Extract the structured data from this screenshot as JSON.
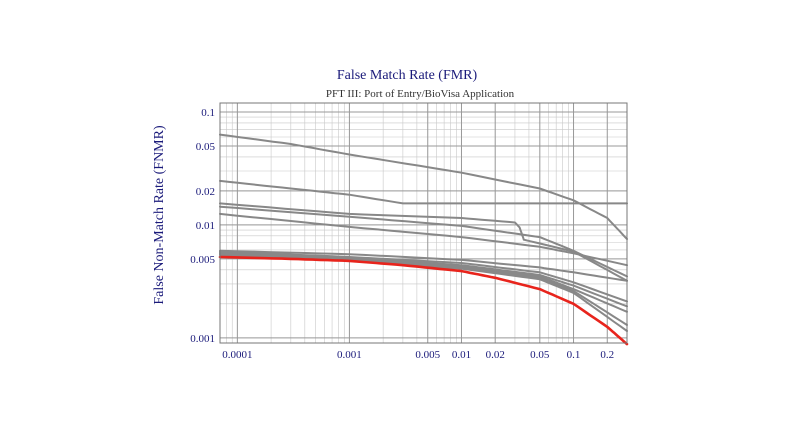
{
  "chart_data": {
    "type": "line",
    "title": "False Match Rate (FMR)",
    "subtitle": "PFT III: Port of Entry/BioVisa Application",
    "xlabel": "",
    "ylabel": "False Non-Match Rate (FNMR)",
    "x_scale": "log",
    "y_scale": "log",
    "xlim": [
      7e-05,
      0.3
    ],
    "ylim": [
      0.0009,
      0.12
    ],
    "grid": true,
    "x_ticks": [
      {
        "value": 0.0001,
        "label": "0.0001"
      },
      {
        "value": 0.001,
        "label": "0.001"
      },
      {
        "value": 0.005,
        "label": "0.005"
      },
      {
        "value": 0.01,
        "label": "0.01"
      },
      {
        "value": 0.02,
        "label": "0.02"
      },
      {
        "value": 0.05,
        "label": "0.05"
      },
      {
        "value": 0.1,
        "label": "0.1"
      },
      {
        "value": 0.2,
        "label": "0.2"
      }
    ],
    "y_ticks": [
      {
        "value": 0.1,
        "label": "0.1"
      },
      {
        "value": 0.05,
        "label": "0.05"
      },
      {
        "value": 0.02,
        "label": "0.02"
      },
      {
        "value": 0.01,
        "label": "0.01"
      },
      {
        "value": 0.005,
        "label": "0.005"
      },
      {
        "value": 0.001,
        "label": "0.001"
      }
    ],
    "series": [
      {
        "color": "#888888",
        "points": [
          [
            7e-05,
            0.063
          ],
          [
            0.0003,
            0.052
          ],
          [
            0.001,
            0.042
          ],
          [
            0.01,
            0.029
          ],
          [
            0.05,
            0.021
          ],
          [
            0.1,
            0.0165
          ],
          [
            0.2,
            0.0115
          ],
          [
            0.3,
            0.0075
          ]
        ]
      },
      {
        "color": "#888888",
        "points": [
          [
            7e-05,
            0.0245
          ],
          [
            0.0003,
            0.021
          ],
          [
            0.001,
            0.0185
          ],
          [
            0.003,
            0.0155
          ],
          [
            0.3,
            0.0155
          ]
        ]
      },
      {
        "color": "#888888",
        "points": [
          [
            7e-05,
            0.0155
          ],
          [
            0.001,
            0.0125
          ],
          [
            0.01,
            0.0115
          ],
          [
            0.03,
            0.0105
          ],
          [
            0.033,
            0.0095
          ],
          [
            0.036,
            0.0074
          ],
          [
            0.1,
            0.0058
          ],
          [
            0.3,
            0.0032
          ]
        ]
      },
      {
        "color": "#888888",
        "points": [
          [
            7e-05,
            0.0145
          ],
          [
            0.001,
            0.0118
          ],
          [
            0.01,
            0.0098
          ],
          [
            0.05,
            0.0078
          ],
          [
            0.1,
            0.0059
          ],
          [
            0.3,
            0.0035
          ]
        ]
      },
      {
        "color": "#888888",
        "points": [
          [
            7e-05,
            0.0125
          ],
          [
            0.001,
            0.0096
          ],
          [
            0.01,
            0.0078
          ],
          [
            0.05,
            0.0064
          ],
          [
            0.1,
            0.0056
          ],
          [
            0.3,
            0.0044
          ]
        ]
      },
      {
        "color": "#888888",
        "points": [
          [
            7e-05,
            0.0059
          ],
          [
            0.001,
            0.0055
          ],
          [
            0.01,
            0.0049
          ],
          [
            0.05,
            0.0042
          ],
          [
            0.1,
            0.0038
          ],
          [
            0.3,
            0.0032
          ]
        ]
      },
      {
        "color": "#888888",
        "points": [
          [
            7e-05,
            0.0058
          ],
          [
            0.001,
            0.0052
          ],
          [
            0.01,
            0.0046
          ],
          [
            0.05,
            0.0038
          ],
          [
            0.1,
            0.0031
          ],
          [
            0.3,
            0.0021
          ]
        ]
      },
      {
        "color": "#888888",
        "points": [
          [
            7e-05,
            0.0057
          ],
          [
            0.001,
            0.0051
          ],
          [
            0.01,
            0.0044
          ],
          [
            0.05,
            0.0036
          ],
          [
            0.1,
            0.0029
          ],
          [
            0.3,
            0.0019
          ]
        ]
      },
      {
        "color": "#888888",
        "points": [
          [
            7e-05,
            0.0056
          ],
          [
            0.001,
            0.005
          ],
          [
            0.01,
            0.0043
          ],
          [
            0.05,
            0.0035
          ],
          [
            0.1,
            0.0027
          ],
          [
            0.3,
            0.0017
          ]
        ]
      },
      {
        "color": "#888888",
        "points": [
          [
            7e-05,
            0.0055
          ],
          [
            0.001,
            0.0049
          ],
          [
            0.01,
            0.0042
          ],
          [
            0.05,
            0.0034
          ],
          [
            0.1,
            0.0026
          ],
          [
            0.3,
            0.0013
          ]
        ]
      },
      {
        "color": "#888888",
        "points": [
          [
            7e-05,
            0.0054
          ],
          [
            0.001,
            0.0048
          ],
          [
            0.01,
            0.0041
          ],
          [
            0.05,
            0.0033
          ],
          [
            0.1,
            0.0025
          ],
          [
            0.3,
            0.00115
          ]
        ]
      },
      {
        "color": "#e8241c",
        "points": [
          [
            7e-05,
            0.0052
          ],
          [
            0.0003,
            0.005
          ],
          [
            0.001,
            0.0048
          ],
          [
            0.003,
            0.0044
          ],
          [
            0.01,
            0.0039
          ],
          [
            0.02,
            0.0034
          ],
          [
            0.05,
            0.0027
          ],
          [
            0.1,
            0.002
          ],
          [
            0.2,
            0.00125
          ],
          [
            0.3,
            0.00088
          ]
        ]
      }
    ]
  }
}
